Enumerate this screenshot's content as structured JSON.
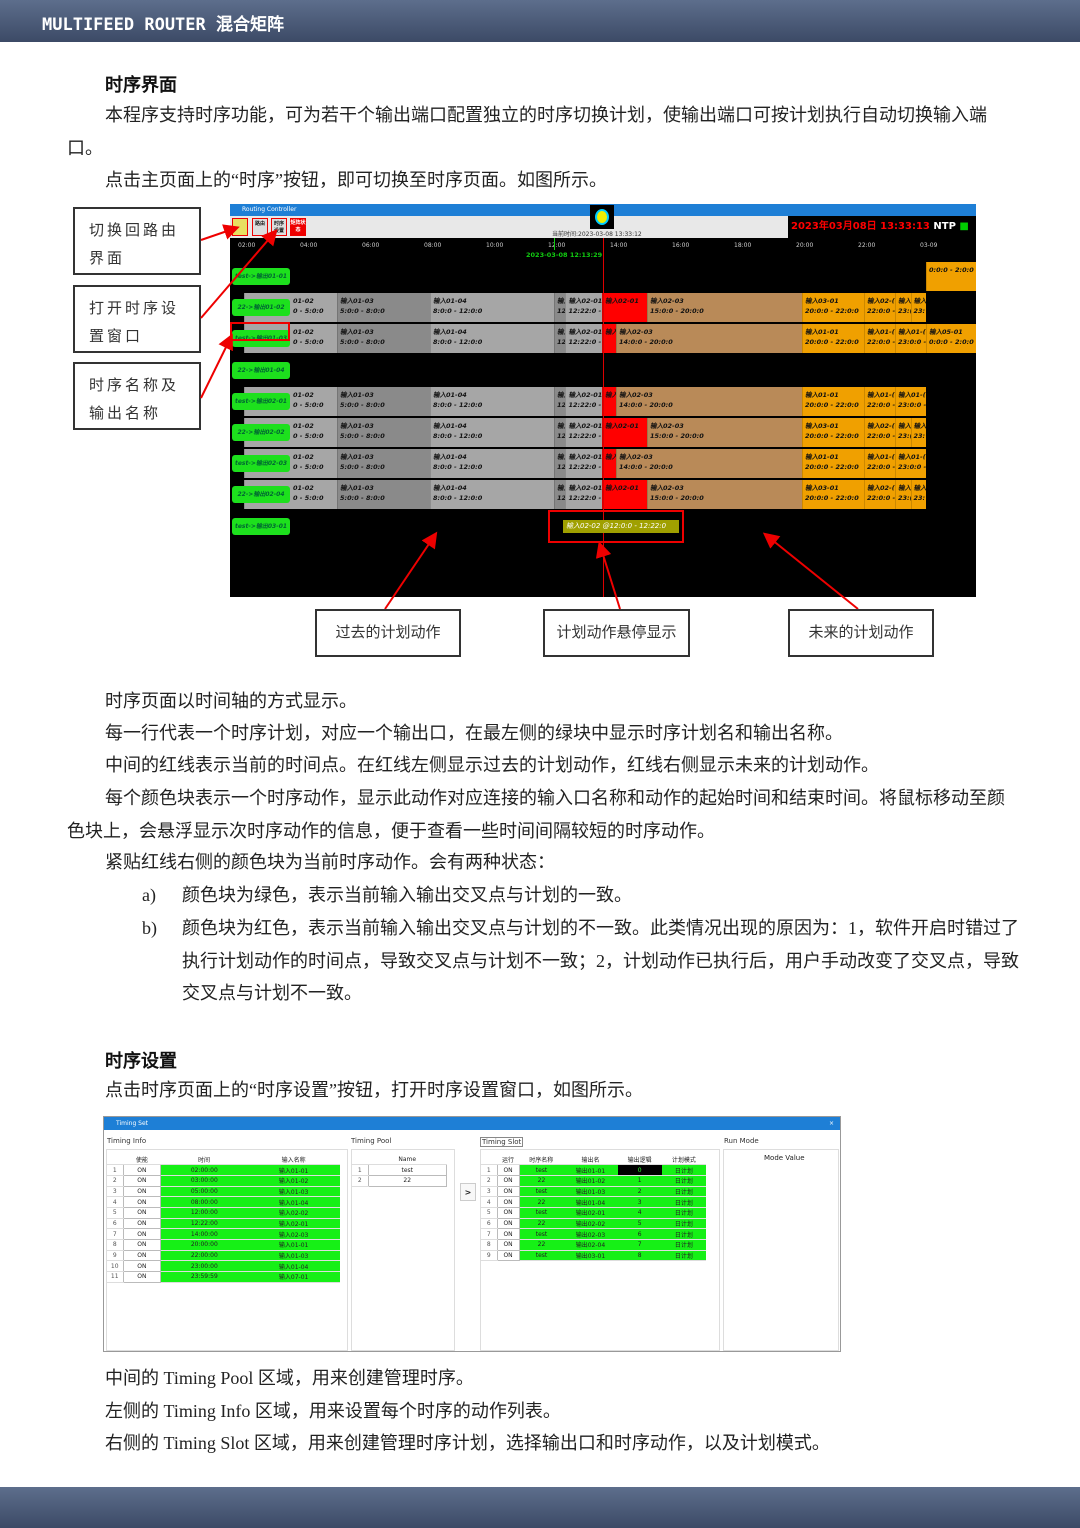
{
  "header": {
    "title": "MULTIFEED ROUTER 混合矩阵"
  },
  "section1": {
    "title": "时序界面",
    "p1": "本程序支持时序功能，可为若干个输出端口配置独立的时序切换计划，使输出端口可按计划执行自动切换输入端口。",
    "p2": "点击主页面上的“时序”按钮，即可切换至时序页面。如图所示。"
  },
  "callouts": {
    "left": [
      "切换回路由界面",
      "打开时序设置窗口",
      "时序名称及输出名称"
    ],
    "bottom": [
      "过去的计划动作",
      "计划动作悬停显示",
      "未来的计划动作"
    ]
  },
  "routing_controller": {
    "window_title": "Routing Controller",
    "buttons": [
      "路由",
      "时序设置",
      "矩阵状态"
    ],
    "current_time_label": "当前时间:2023-03-08 13:33:12",
    "clock": "2023年03月08日 13:33:13",
    "ntp": "NTP",
    "marker_time": "2023-03-08 12:13:29",
    "axis_ticks": [
      "02:00",
      "04:00",
      "06:00",
      "08:00",
      "10:00",
      "12:00",
      "14:00",
      "16:00",
      "18:00",
      "20:00",
      "22:00",
      "03-09"
    ],
    "now_hour": 13.55,
    "colors": {
      "past": "#a6a6a6",
      "past_alt": "#8a8a8a",
      "mismatch": "#ff0000",
      "future": "#b98a58",
      "future_alt": "#f0a000",
      "label": "#1de01d"
    },
    "rows": [
      {
        "label": "test->输出01-01",
        "segments": [
          {
            "in": "",
            "time": "0:0:0 - 2:0:0",
            "start": 24,
            "end": 26,
            "state": "future2"
          }
        ]
      },
      {
        "label": "22->输出01-02",
        "plan": "p22"
      },
      {
        "label": "test->输出01-03",
        "plan": "ptest",
        "extra": [
          {
            "in": "输入05-01",
            "time": "0:0:0 - 2:0:0",
            "start": 24,
            "end": 26,
            "state": "future2"
          }
        ]
      },
      {
        "label": "22->输出01-04",
        "segments": []
      },
      {
        "label": "test->输出02-01",
        "plan": "ptest"
      },
      {
        "label": "22->输出02-02",
        "plan": "p22"
      },
      {
        "label": "test->输出02-03",
        "plan": "ptest"
      },
      {
        "label": "22->输出02-04",
        "plan": "p22"
      },
      {
        "label": "test->输出03-01",
        "segments": []
      }
    ],
    "plans": {
      "p22": [
        {
          "in": "01-02",
          "time": "0 - 5:0:0",
          "start": 2,
          "end": 5,
          "state": "past"
        },
        {
          "in": "输入01-03",
          "time": "5:0:0 - 8:0:0",
          "start": 5,
          "end": 8,
          "state": "past2"
        },
        {
          "in": "输入01-04",
          "time": "8:0:0 - 12:0:0",
          "start": 8,
          "end": 12,
          "state": "past"
        },
        {
          "in": "输入",
          "time": "12:",
          "start": 12,
          "end": 12.37,
          "state": "past2"
        },
        {
          "in": "输入02-01",
          "time": "12:22:0 -",
          "start": 12.37,
          "end": 13.55,
          "state": "past"
        },
        {
          "in": "输入02-01",
          "time": "",
          "start": 13.55,
          "end": 15,
          "state": "mismatch"
        },
        {
          "in": "输入02-03",
          "time": "15:0:0 - 20:0:0",
          "start": 15,
          "end": 20,
          "state": "future"
        },
        {
          "in": "输入03-01",
          "time": "20:0:0 - 22:0:0",
          "start": 20,
          "end": 22,
          "state": "future2"
        },
        {
          "in": "输入02-(",
          "time": "22:0:0 -",
          "start": 22,
          "end": 23,
          "state": "future2"
        },
        {
          "in": "输入",
          "time": "23:(",
          "start": 23,
          "end": 23.5,
          "state": "future2"
        },
        {
          "in": "输入",
          "time": "23:",
          "start": 23.5,
          "end": 24,
          "state": "future2"
        }
      ],
      "ptest": [
        {
          "in": "01-02",
          "time": "0 - 5:0:0",
          "start": 2,
          "end": 5,
          "state": "past"
        },
        {
          "in": "输入01-03",
          "time": "5:0:0 - 8:0:0",
          "start": 5,
          "end": 8,
          "state": "past2"
        },
        {
          "in": "输入01-04",
          "time": "8:0:0 - 12:0:0",
          "start": 8,
          "end": 12,
          "state": "past"
        },
        {
          "in": "输入",
          "time": "12:",
          "start": 12,
          "end": 12.37,
          "state": "past2"
        },
        {
          "in": "输入02-01",
          "time": "12:22:0 -",
          "start": 12.37,
          "end": 13.55,
          "state": "past"
        },
        {
          "in": "输入",
          "time": "",
          "start": 13.55,
          "end": 14,
          "state": "mismatch"
        },
        {
          "in": "输入02-03",
          "time": "14:0:0 - 20:0:0",
          "start": 14,
          "end": 20,
          "state": "future"
        },
        {
          "in": "输入01-01",
          "time": "20:0:0 - 22:0:0",
          "start": 20,
          "end": 22,
          "state": "future2"
        },
        {
          "in": "输入01-(",
          "time": "22:0:0 -",
          "start": 22,
          "end": 23,
          "state": "future2"
        },
        {
          "in": "输入01-(",
          "time": "23:0:0 -",
          "start": 23,
          "end": 24,
          "state": "future2"
        }
      ]
    },
    "tooltip": "输入02-02 @12:0:0 - 12:22:0"
  },
  "section1_text": {
    "l1": "时序页面以时间轴的方式显示。",
    "l2": "每一行代表一个时序计划，对应一个输出口，在最左侧的绿块中显示时序计划名和输出名称。",
    "l3": "中间的红线表示当前的时间点。在红线左侧显示过去的计划动作，红线右侧显示未来的计划动作。",
    "l4": "每个颜色块表示一个时序动作，显示此动作对应连接的输入口名称和动作的起始时间和结束时间。将鼠标移动至颜色块上，会悬浮显示次时序动作的信息，便于查看一些时间间隔较短的时序动作。",
    "l5": "紧贴红线右侧的颜色块为当前时序动作。会有两种状态：",
    "a_marker": "a)",
    "a": "颜色块为绿色，表示当前输入输出交叉点与计划的一致。",
    "b_marker": "b)",
    "b": "颜色块为红色，表示当前输入输出交叉点与计划的不一致。此类情况出现的原因为：1，软件开启时错过了执行计划动作的时间点，导致交叉点与计划不一致；2，计划动作已执行后，用户手动改变了交叉点，导致交叉点与计划不一致。"
  },
  "section2": {
    "title": "时序设置",
    "p1": "点击时序页面上的“时序设置”按钮，打开时序设置窗口，如图所示。",
    "l1": "中间的 Timing Pool 区域，用来创建管理时序。",
    "l2": "左侧的 Timing Info 区域，用来设置每个时序的动作列表。",
    "l3": "右侧的 Timing Slot 区域，用来创建管理时序计划，选择输出口和时序动作，以及计划模式。"
  },
  "timing_set": {
    "window_title": "Timing Set",
    "close": "×",
    "panels": [
      "Timing Info",
      "Timing Pool",
      "Timing Slot",
      "Run Mode"
    ],
    "info_headers": [
      "使能",
      "时间",
      "输入名称"
    ],
    "info_rows": [
      [
        "ON",
        "02:00:00",
        "输入01-01"
      ],
      [
        "ON",
        "03:00:00",
        "输入01-02"
      ],
      [
        "ON",
        "05:00:00",
        "输入01-03"
      ],
      [
        "ON",
        "08:00:00",
        "输入01-04"
      ],
      [
        "ON",
        "12:00:00",
        "输入02-02"
      ],
      [
        "ON",
        "12:22:00",
        "输入02-01"
      ],
      [
        "ON",
        "14:00:00",
        "输入02-03"
      ],
      [
        "ON",
        "20:00:00",
        "输入01-01"
      ],
      [
        "ON",
        "22:00:00",
        "输入01-03"
      ],
      [
        "ON",
        "23:00:00",
        "输入01-04"
      ],
      [
        "ON",
        "23:59:59",
        "输入07-01"
      ]
    ],
    "pool_header": "Name",
    "pool_rows": [
      "test",
      "22"
    ],
    "move_button": ">",
    "slot_headers": [
      "运行",
      "时序名称",
      "输出名",
      "输出逻辑",
      "计划模式"
    ],
    "slot_rows": [
      [
        "ON",
        "test",
        "输出01-01",
        "0",
        "日计划"
      ],
      [
        "ON",
        "22",
        "输出01-02",
        "1",
        "日计划"
      ],
      [
        "ON",
        "test",
        "输出01-03",
        "2",
        "日计划"
      ],
      [
        "ON",
        "22",
        "输出01-04",
        "3",
        "日计划"
      ],
      [
        "ON",
        "test",
        "输出02-01",
        "4",
        "日计划"
      ],
      [
        "ON",
        "22",
        "输出02-02",
        "5",
        "日计划"
      ],
      [
        "ON",
        "test",
        "输出02-03",
        "6",
        "日计划"
      ],
      [
        "ON",
        "22",
        "输出02-04",
        "7",
        "日计划"
      ],
      [
        "ON",
        "test",
        "输出03-01",
        "8",
        "日计划"
      ]
    ],
    "run_mode_header": "Mode Value"
  }
}
